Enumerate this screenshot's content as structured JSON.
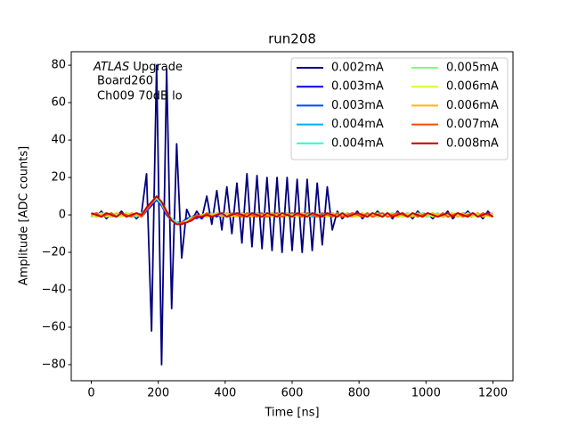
{
  "chart_data": {
    "type": "line",
    "title": "run208",
    "x_label": "Time [ns]",
    "y_label": "Amplitude [ADC counts]",
    "annotation_emphasis": "ATLAS",
    "annotation_lines": [
      "Upgrade",
      "Board260",
      "Ch009 70dB lo"
    ],
    "xlim": [
      -60,
      1260
    ],
    "ylim": [
      -88.6,
      87.2
    ],
    "xticks": [
      0,
      200,
      400,
      600,
      800,
      1000,
      1200
    ],
    "yticks": [
      {
        "value": -80,
        "label": "−80"
      },
      {
        "value": -60,
        "label": "−60"
      },
      {
        "value": -40,
        "label": "−40"
      },
      {
        "value": -20,
        "label": "−20"
      },
      0,
      20,
      40,
      60,
      80
    ],
    "legend": "upper right",
    "legend_columns": 2,
    "x": [
      0,
      15,
      30,
      45,
      60,
      75,
      90,
      105,
      120,
      135,
      150,
      165,
      180,
      195,
      210,
      225,
      240,
      255,
      270,
      285,
      300,
      315,
      330,
      345,
      360,
      375,
      390,
      405,
      420,
      435,
      450,
      465,
      480,
      495,
      510,
      525,
      540,
      555,
      570,
      585,
      600,
      615,
      630,
      645,
      660,
      675,
      690,
      705,
      720,
      735,
      750,
      765,
      780,
      795,
      810,
      825,
      840,
      855,
      870,
      885,
      900,
      915,
      930,
      945,
      960,
      975,
      990,
      1005,
      1020,
      1035,
      1050,
      1065,
      1080,
      1095,
      1110,
      1125,
      1140,
      1155,
      1170,
      1185,
      1200
    ],
    "series": [
      {
        "name": "0.002mA",
        "color": "#00007f",
        "values": [
          1,
          -1,
          2,
          -2,
          1,
          -1,
          2,
          -1,
          1,
          -2,
          1,
          22,
          -62,
          80,
          -80,
          78,
          -50,
          38,
          -23,
          3,
          -3,
          2,
          -2,
          10,
          -5,
          13,
          -8,
          15,
          -10,
          17,
          -15,
          22,
          -17,
          21,
          -18,
          20,
          -19,
          20,
          -20,
          20,
          -19,
          19,
          -20,
          19,
          -19,
          17,
          -16,
          15,
          -8,
          2,
          -2,
          1,
          -1,
          2,
          -2,
          1,
          -1,
          2,
          -1,
          1,
          -2,
          2,
          -1,
          1,
          -2,
          2,
          -1,
          1,
          -2,
          1,
          -1,
          2,
          -2,
          1,
          -1,
          2,
          -1,
          1,
          -2,
          2,
          -1
        ]
      },
      {
        "name": "0.003mA",
        "color": "#0000f1",
        "values": [
          -1,
          1,
          0,
          1,
          -1,
          0,
          1,
          -1,
          1,
          0,
          -1,
          2,
          5,
          8,
          5,
          0,
          -3,
          -4,
          -4,
          -2,
          -1,
          0,
          -2,
          1,
          0,
          -1,
          1,
          0,
          -1,
          1,
          0,
          -1,
          1,
          0,
          1,
          -1,
          0,
          1,
          -1,
          0,
          1,
          0,
          -1,
          1,
          0,
          -1,
          0,
          1,
          -1,
          1,
          0,
          -1,
          1,
          0,
          -1,
          1,
          -1,
          0,
          1,
          -1,
          0,
          1,
          -1,
          0,
          1,
          -1,
          1,
          0,
          -1,
          1,
          -1,
          0,
          1,
          -1,
          1,
          0,
          -1,
          1,
          -1,
          0,
          1
        ]
      },
      {
        "name": "0.003mA",
        "color": "#004cff",
        "values": [
          0,
          1,
          -1,
          1,
          0,
          -1,
          1,
          0,
          -1,
          1,
          0,
          2,
          6,
          8,
          5,
          1,
          -2,
          -4,
          -5,
          -3,
          -1,
          -2,
          0,
          -1,
          1,
          0,
          -1,
          1,
          0,
          -1,
          1,
          0,
          -1,
          1,
          0,
          -1,
          1,
          0,
          -1,
          0,
          -1,
          1,
          0,
          -1,
          1,
          0,
          -1,
          1,
          0,
          -1,
          1,
          0,
          -1,
          1,
          0,
          -1,
          1,
          -1,
          0,
          1,
          -1,
          0,
          1,
          -1,
          0,
          1,
          -1,
          1,
          0,
          -1,
          1,
          -1,
          0,
          1,
          -1,
          0,
          1,
          0,
          -1,
          1,
          0
        ]
      },
      {
        "name": "0.004mA",
        "color": "#00b0ff",
        "values": [
          1,
          -1,
          1,
          0,
          -1,
          1,
          -1,
          1,
          0,
          -1,
          1,
          3,
          6,
          9,
          6,
          1,
          -3,
          -4,
          -5,
          -3,
          -2,
          -1,
          -1,
          0,
          -1,
          1,
          0,
          -1,
          1,
          0,
          -1,
          1,
          0,
          1,
          -1,
          0,
          1,
          -1,
          0,
          1,
          0,
          -1,
          1,
          0,
          -1,
          0,
          1,
          -1,
          1,
          0,
          -1,
          1,
          0,
          -1,
          1,
          -1,
          0,
          1,
          -1,
          0,
          1,
          -1,
          0,
          1,
          -1,
          1,
          0,
          -1,
          1,
          -1,
          0,
          1,
          -1,
          1,
          0,
          -1,
          1,
          -1,
          0,
          1,
          -1
        ]
      },
      {
        "name": "0.004mA",
        "color": "#29ffce",
        "values": [
          1,
          0,
          -1,
          0,
          1,
          -1,
          0,
          1,
          -1,
          1,
          0,
          3,
          6,
          9,
          7,
          2,
          -2,
          -4,
          -5,
          -3,
          -2,
          0,
          -1,
          1,
          -1,
          0,
          1,
          -1,
          0,
          1,
          -1,
          0,
          1,
          -1,
          0,
          1,
          0,
          -1,
          1,
          -1,
          0,
          1,
          -1,
          0,
          1,
          -1,
          1,
          0,
          -1,
          0,
          1,
          -1,
          0,
          1,
          -1,
          0,
          1,
          -1,
          1,
          0,
          -1,
          1,
          0,
          -1,
          1,
          0,
          -1,
          0,
          1,
          -1,
          1,
          0,
          -1,
          1,
          -1,
          0,
          1,
          -1,
          1,
          0,
          -1
        ]
      },
      {
        "name": "0.005mA",
        "color": "#7dff7a",
        "values": [
          -1,
          0,
          1,
          -1,
          1,
          0,
          -1,
          0,
          1,
          -1,
          1,
          3,
          7,
          9,
          6,
          1,
          -3,
          -5,
          -4,
          -3,
          -1,
          -1,
          0,
          -1,
          1,
          0,
          1,
          -1,
          0,
          1,
          0,
          -1,
          1,
          -1,
          0,
          1,
          -1,
          0,
          1,
          0,
          -1,
          0,
          1,
          -1,
          0,
          1,
          -1,
          1,
          0,
          1,
          -1,
          0,
          1,
          -1,
          0,
          1,
          -1,
          1,
          0,
          -1,
          1,
          0,
          -1,
          1,
          0,
          -1,
          1,
          -1,
          0,
          1,
          0,
          -1,
          1,
          0,
          -1,
          1,
          0,
          -1,
          1,
          -1,
          0
        ]
      },
      {
        "name": "0.006mA",
        "color": "#ceff29",
        "values": [
          0,
          -1,
          1,
          -1,
          0,
          1,
          -1,
          1,
          0,
          1,
          -1,
          3,
          7,
          10,
          7,
          2,
          -3,
          -5,
          -5,
          -3,
          -2,
          -1,
          0,
          1,
          -1,
          0,
          1,
          0,
          -1,
          1,
          -1,
          1,
          0,
          -1,
          1,
          0,
          -1,
          1,
          0,
          -1,
          1,
          -1,
          0,
          1,
          0,
          -1,
          1,
          -1,
          0,
          1,
          0,
          -1,
          1,
          -1,
          0,
          1,
          0,
          -1,
          1,
          0,
          -1,
          1,
          -1,
          0,
          1,
          0,
          -1,
          1,
          -1,
          0,
          1,
          -1,
          1,
          0,
          -1,
          1,
          -1,
          0,
          1,
          -1,
          1
        ]
      },
      {
        "name": "0.006mA",
        "color": "#ffb900",
        "values": [
          1,
          -1,
          0,
          1,
          -1,
          1,
          0,
          -1,
          1,
          0,
          -1,
          3,
          7,
          10,
          7,
          2,
          -3,
          -5,
          -5,
          -4,
          -2,
          -1,
          0,
          -1,
          0,
          1,
          -1,
          1,
          0,
          -1,
          1,
          0,
          -1,
          1,
          -1,
          0,
          1,
          0,
          -1,
          1,
          -1,
          0,
          1,
          -1,
          1,
          0,
          -1,
          0,
          1,
          -1,
          0,
          1,
          -1,
          0,
          1,
          -1,
          0,
          1,
          -1,
          1,
          0,
          -1,
          1,
          0,
          -1,
          1,
          -1,
          0,
          1,
          0,
          -1,
          1,
          0,
          -1,
          1,
          -1,
          0,
          1,
          -1,
          0,
          1
        ]
      },
      {
        "name": "0.007mA",
        "color": "#ff4a00",
        "values": [
          0,
          1,
          -1,
          0,
          1,
          -1,
          1,
          0,
          -1,
          1,
          -1,
          3,
          6,
          10,
          7,
          1,
          -3,
          -5,
          -4,
          -4,
          -2,
          0,
          -1,
          1,
          -1,
          0,
          1,
          -1,
          1,
          0,
          -1,
          1,
          0,
          -1,
          1,
          -1,
          0,
          1,
          -1,
          0,
          1,
          0,
          -1,
          1,
          0,
          -1,
          1,
          0,
          -1,
          1,
          -1,
          0,
          1,
          0,
          -1,
          1,
          -1,
          0,
          1,
          -1,
          0,
          1,
          0,
          -1,
          1,
          -1,
          0,
          1,
          0,
          -1,
          1,
          -1,
          0,
          1,
          -1,
          0,
          1,
          -1,
          1,
          0,
          -1
        ]
      },
      {
        "name": "0.008mA",
        "color": "#c60000",
        "values": [
          1,
          0,
          -1,
          1,
          0,
          -1,
          1,
          -1,
          0,
          1,
          0,
          4,
          7,
          10,
          7,
          2,
          -3,
          -5,
          -5,
          -4,
          -3,
          -1,
          -1,
          0,
          -1,
          0,
          1,
          -1,
          0,
          1,
          0,
          -1,
          1,
          0,
          -1,
          1,
          0,
          -1,
          1,
          0,
          -1,
          1,
          0,
          -1,
          1,
          0,
          -1,
          1,
          0,
          -1,
          1,
          -1,
          0,
          1,
          0,
          -1,
          1,
          0,
          -1,
          1,
          -1,
          0,
          1,
          -1,
          1,
          0,
          -1,
          1,
          0,
          -1,
          0,
          1,
          -1,
          1,
          0,
          -1,
          1,
          -1,
          0,
          1,
          -1
        ]
      }
    ]
  }
}
